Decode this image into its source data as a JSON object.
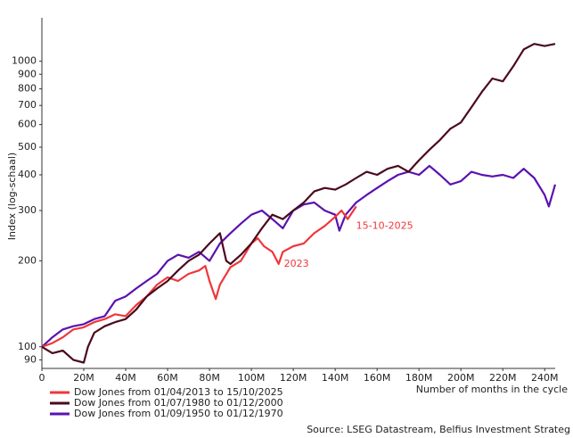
{
  "chart_data": {
    "type": "line",
    "y_label": "Index (log-schaal)",
    "x_label": "Number of months in the cycle",
    "source": "Source: LSEG Datastream, Belfius Investment Strateg",
    "log_y": true,
    "xlim": [
      0,
      245
    ],
    "ylim": [
      84,
      1320
    ],
    "xticks": [
      0,
      {
        "value": 20,
        "label": "20M"
      },
      {
        "value": 40,
        "label": "40M"
      },
      {
        "value": 60,
        "label": "60M"
      },
      {
        "value": 80,
        "label": "80M"
      },
      {
        "value": 100,
        "label": "100M"
      },
      {
        "value": 120,
        "label": "120M"
      },
      {
        "value": 140,
        "label": "140M"
      },
      {
        "value": 160,
        "label": "160M"
      },
      {
        "value": 180,
        "label": "180M"
      },
      {
        "value": 200,
        "label": "200M"
      },
      {
        "value": 220,
        "label": "220M"
      },
      {
        "value": 240,
        "label": "240M"
      }
    ],
    "yticks": [
      90,
      100,
      200,
      300,
      400,
      500,
      600,
      700,
      800,
      900,
      1000
    ],
    "annotations": [
      {
        "text": "15-10-2025",
        "x": 150,
        "y": 310
      },
      {
        "text": "2023",
        "x": 113,
        "y": 195
      }
    ],
    "series": [
      {
        "name": "Dow Jones from 01/04/2013 to 15/10/2025",
        "color": "#f0363a",
        "x": [
          0,
          5,
          10,
          15,
          20,
          25,
          30,
          35,
          40,
          45,
          50,
          55,
          60,
          65,
          70,
          75,
          78,
          80,
          83,
          85,
          90,
          95,
          100,
          103,
          106,
          110,
          113,
          115,
          120,
          125,
          130,
          135,
          140,
          143,
          146,
          150
        ],
        "values": [
          100,
          103,
          108,
          115,
          117,
          122,
          125,
          130,
          128,
          140,
          150,
          165,
          175,
          170,
          180,
          185,
          192,
          170,
          147,
          165,
          190,
          200,
          230,
          240,
          225,
          215,
          195,
          215,
          225,
          230,
          250,
          265,
          285,
          300,
          280,
          310
        ]
      },
      {
        "name": "Dow Jones from 01/07/1980 to 01/12/2000",
        "color": "#4a0a1e",
        "x": [
          0,
          5,
          10,
          15,
          20,
          22,
          25,
          30,
          35,
          40,
          45,
          50,
          55,
          60,
          65,
          70,
          75,
          80,
          85,
          88,
          90,
          95,
          100,
          105,
          110,
          115,
          120,
          125,
          130,
          135,
          140,
          145,
          150,
          155,
          160,
          165,
          170,
          175,
          180,
          185,
          190,
          195,
          200,
          205,
          210,
          215,
          220,
          225,
          230,
          235,
          240,
          245
        ],
        "values": [
          100,
          95,
          97,
          90,
          88,
          100,
          112,
          118,
          122,
          125,
          135,
          150,
          160,
          170,
          185,
          200,
          210,
          230,
          250,
          200,
          195,
          210,
          230,
          260,
          290,
          280,
          300,
          320,
          350,
          360,
          355,
          370,
          390,
          410,
          400,
          420,
          430,
          410,
          450,
          490,
          530,
          580,
          610,
          690,
          780,
          870,
          850,
          960,
          1100,
          1150,
          1130,
          1150
        ]
      },
      {
        "name": "Dow Jones from 01/09/1950 to 01/12/1970",
        "color": "#5a12b0",
        "x": [
          0,
          5,
          10,
          15,
          20,
          25,
          30,
          35,
          40,
          45,
          50,
          55,
          60,
          65,
          70,
          75,
          80,
          85,
          90,
          95,
          100,
          105,
          110,
          115,
          120,
          125,
          130,
          135,
          140,
          142,
          145,
          150,
          155,
          160,
          165,
          170,
          175,
          180,
          185,
          190,
          195,
          200,
          205,
          210,
          215,
          220,
          225,
          230,
          235,
          240,
          242,
          245
        ],
        "values": [
          100,
          108,
          115,
          118,
          120,
          125,
          128,
          145,
          150,
          160,
          170,
          180,
          200,
          210,
          205,
          215,
          200,
          230,
          250,
          270,
          290,
          300,
          280,
          260,
          300,
          315,
          320,
          300,
          290,
          255,
          290,
          320,
          340,
          360,
          380,
          400,
          410,
          400,
          430,
          400,
          370,
          380,
          410,
          400,
          395,
          400,
          390,
          420,
          390,
          340,
          310,
          370
        ]
      }
    ]
  }
}
